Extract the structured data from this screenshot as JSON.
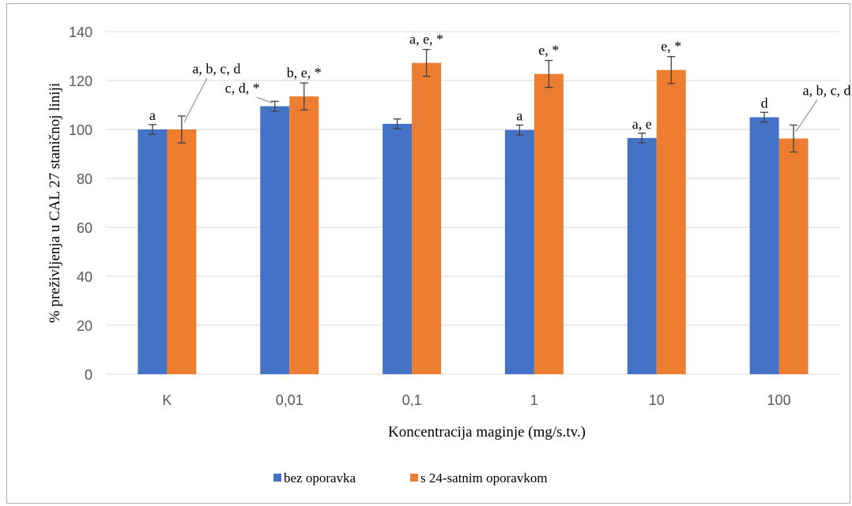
{
  "chart_data": {
    "type": "bar",
    "title": "",
    "xlabel": "Koncentracija maginje (mg/s.tv.)",
    "ylabel": "% preživljenja u CAL 27 staničnoj liniji",
    "ylim": [
      0,
      140
    ],
    "yticks": [
      0,
      20,
      40,
      60,
      80,
      100,
      120,
      140
    ],
    "grid": true,
    "legend_position": "bottom",
    "categories": [
      "K",
      "0,01",
      "0,1",
      "1",
      "10",
      "100"
    ],
    "series": [
      {
        "name": "bez oporavka",
        "color": "#4472c4",
        "values": [
          100,
          109.5,
          102.3,
          99.8,
          96.5,
          105
        ],
        "errors": [
          2,
          2,
          2,
          2,
          2,
          2
        ],
        "labels": [
          "a",
          "c, d, *",
          "",
          "a",
          "a, e",
          "d"
        ]
      },
      {
        "name": "s 24-satnim oporavkom",
        "color": "#ed7d31",
        "values": [
          100,
          113.5,
          127.2,
          122.7,
          124.3,
          96.3
        ],
        "errors": [
          5.5,
          5.5,
          5.5,
          5.5,
          5.5,
          5.5
        ],
        "labels": [
          "a, b, c, d",
          "b, e, *",
          "a, e, *",
          "e, *",
          "e, *",
          "a, b, c, d"
        ]
      }
    ]
  }
}
